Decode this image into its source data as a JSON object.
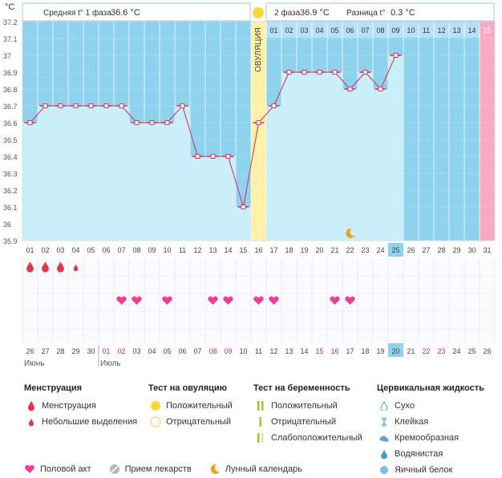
{
  "header": {
    "unit": "°C",
    "phase1_label": "Средняя t° 1 фаза",
    "phase1_value": "36.6 °C",
    "phase2_label": "2 фаза",
    "phase2_value": "36.9 °C",
    "diff_label": "Разница t°",
    "diff_value": "0.3 °C",
    "ovulation_label": "ОВУЛЯЦИЯ"
  },
  "chart_data": {
    "type": "line",
    "title": "",
    "ylim": [
      35.9,
      37.2
    ],
    "yticks": [
      "37.2",
      "37.1",
      "37",
      "36.9",
      "36.8",
      "36.7",
      "36.6",
      "36.5",
      "36.4",
      "36.3",
      "36.2",
      "36.1",
      "36",
      "35.9"
    ],
    "cycle_days": [
      "01",
      "02",
      "03",
      "04",
      "05",
      "06",
      "07",
      "08",
      "09",
      "10",
      "11",
      "12",
      "13",
      "14",
      "15",
      "16",
      "17",
      "18",
      "19",
      "20",
      "21",
      "22",
      "23",
      "24",
      "25",
      "26",
      "27",
      "28",
      "29",
      "30",
      "31"
    ],
    "temperatures": [
      36.6,
      36.7,
      36.7,
      36.7,
      36.7,
      36.7,
      36.7,
      36.6,
      36.6,
      36.6,
      36.7,
      36.4,
      36.4,
      36.4,
      36.1,
      36.6,
      36.7,
      36.9,
      36.9,
      36.9,
      36.9,
      36.8,
      36.9,
      36.8,
      37.0
    ],
    "ovulation_day": 16,
    "current_day": 25,
    "expected_period_day": 31,
    "phase2_day_labels": [
      "01",
      "02",
      "03",
      "04",
      "05",
      "06",
      "07",
      "08",
      "09",
      "10",
      "11",
      "12",
      "13",
      "14",
      "15"
    ],
    "calendar_dates": [
      "26",
      "27",
      "28",
      "29",
      "30",
      "01",
      "02",
      "03",
      "04",
      "05",
      "06",
      "07",
      "08",
      "09",
      "10",
      "11",
      "12",
      "13",
      "14",
      "15",
      "16",
      "17",
      "18",
      "19",
      "20",
      "21",
      "22",
      "23",
      "24",
      "25",
      "26"
    ],
    "highlighted_dates_idx": [
      5,
      6,
      12,
      13,
      19,
      20,
      26,
      27
    ],
    "months": [
      {
        "label": "Июнь",
        "start_idx": 0
      },
      {
        "label": "Июль",
        "start_idx": 5
      }
    ],
    "menstruation_days": [
      1,
      2,
      3
    ],
    "light_spotting_days": [
      4
    ],
    "intercourse_days": [
      7,
      8,
      10,
      13,
      14,
      16,
      17,
      21,
      22
    ],
    "moon_day": 22
  },
  "legend": {
    "menstruation": {
      "title": "Менструация",
      "items": [
        "Менструация",
        "Небольшие выделения"
      ]
    },
    "ovulation_test": {
      "title": "Тест на овуляцию",
      "items": [
        "Положительный",
        "Отрицательный"
      ]
    },
    "pregnancy_test": {
      "title": "Тест на беременность",
      "items": [
        "Положительный",
        "Отрицательный",
        "Слабоположительный"
      ]
    },
    "cervical_fluid": {
      "title": "Цервикальная жидкость",
      "items": [
        "Сухо",
        "Клейкая",
        "Кремообразная",
        "Водянистая",
        "Яичный белок"
      ]
    },
    "bottom": [
      "Половой акт",
      "Прием лекарств",
      "Лунный календарь"
    ]
  },
  "colors": {
    "phase_bg": "#8fd2ee",
    "bar_fill": "#cbeefb",
    "line": "#d23a63",
    "ovulation": "#fff2a8",
    "period": "#f9a9c2",
    "today": "#8fd2ee",
    "drop": "#e8334a",
    "heart": "#ef3f94",
    "moon": "#f0a020"
  }
}
